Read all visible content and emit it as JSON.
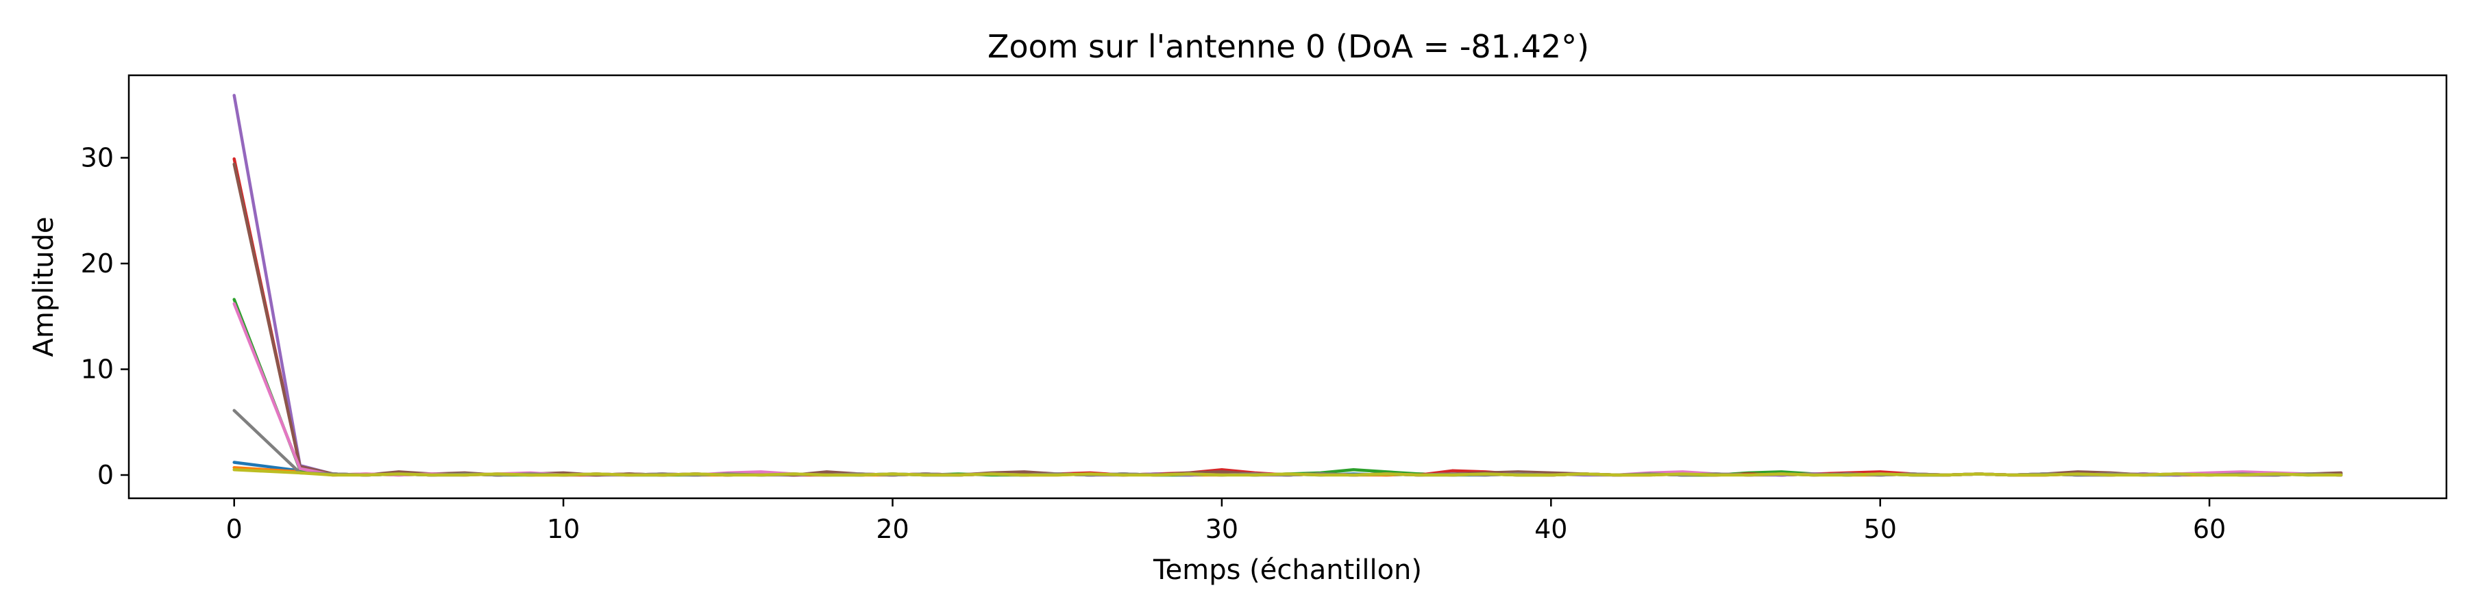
{
  "chart_data": {
    "type": "line",
    "title": "Zoom sur l'antenne 0 (DoA = -81.42°)",
    "xlabel": "Temps (échantillon)",
    "ylabel": "Amplitude",
    "xlim": [
      -3.2,
      67.2
    ],
    "ylim": [
      -2.2,
      37.8
    ],
    "xticks": [
      0,
      10,
      20,
      30,
      40,
      50,
      60
    ],
    "yticks": [
      0,
      10,
      20,
      30
    ],
    "grid": false,
    "legend": "none",
    "x": [
      0,
      2,
      3,
      4,
      5,
      6,
      7,
      8,
      9,
      10,
      11,
      12,
      13,
      14,
      15,
      16,
      17,
      18,
      19,
      20,
      21,
      22,
      23,
      24,
      25,
      26,
      27,
      28,
      29,
      30,
      31,
      32,
      33,
      34,
      35,
      36,
      37,
      38,
      39,
      40,
      41,
      42,
      43,
      44,
      45,
      46,
      47,
      48,
      49,
      50,
      51,
      52,
      53,
      54,
      55,
      56,
      57,
      58,
      59,
      60,
      61,
      62,
      63,
      64
    ],
    "series": [
      {
        "color": "#1f77b4",
        "values": [
          1.2,
          0.4,
          0.1,
          0.0,
          0.1,
          0.0,
          0.1,
          0.0,
          0.1,
          0.0,
          0.1,
          0.0,
          0.0,
          0.1,
          0.0,
          0.1,
          0.0,
          0.1,
          0.0,
          0.1,
          0.0,
          0.0,
          0.1,
          0.0,
          0.1,
          0.0,
          0.1,
          0.0,
          0.0,
          0.1,
          0.0,
          0.1,
          0.0,
          0.1,
          0.0,
          0.1,
          0.0,
          0.0,
          0.1,
          0.0,
          0.1,
          0.0,
          0.1,
          0.0,
          0.0,
          0.1,
          0.0,
          0.1,
          0.0,
          0.1,
          0.0,
          0.0,
          0.1,
          0.0,
          0.1,
          0.0,
          0.1,
          0.0,
          0.0,
          0.1,
          0.0,
          0.1,
          0.0,
          0.1
        ]
      },
      {
        "color": "#ff7f0e",
        "values": [
          0.7,
          0.3,
          0.0,
          0.1,
          0.0,
          0.1,
          0.0,
          0.1,
          0.0,
          0.0,
          0.1,
          0.0,
          0.1,
          0.0,
          0.0,
          0.1,
          0.0,
          0.1,
          0.0,
          0.0,
          0.1,
          0.0,
          0.1,
          0.0,
          0.0,
          0.1,
          0.0,
          0.1,
          0.0,
          0.0,
          0.1,
          0.0,
          0.1,
          0.0,
          0.0,
          0.1,
          0.0,
          0.1,
          0.0,
          0.0,
          0.1,
          0.0,
          0.1,
          0.0,
          0.0,
          0.1,
          0.0,
          0.1,
          0.0,
          0.0,
          0.1,
          0.0,
          0.1,
          0.0,
          0.0,
          0.1,
          0.0,
          0.1,
          0.0,
          0.0,
          0.1,
          0.0,
          0.1,
          0.0
        ]
      },
      {
        "color": "#2ca02c",
        "values": [
          16.6,
          0.5,
          0.1,
          0.0,
          0.1,
          0.0,
          0.1,
          0.0,
          0.0,
          0.1,
          0.0,
          0.1,
          0.0,
          0.0,
          0.1,
          0.0,
          0.1,
          0.0,
          0.0,
          0.1,
          0.0,
          0.1,
          0.0,
          0.0,
          0.1,
          0.0,
          0.1,
          0.0,
          0.0,
          0.1,
          0.0,
          0.1,
          0.2,
          0.5,
          0.3,
          0.1,
          0.0,
          0.1,
          0.0,
          0.0,
          0.1,
          0.0,
          0.1,
          0.0,
          0.0,
          0.2,
          0.3,
          0.1,
          0.0,
          0.1,
          0.0,
          0.0,
          0.1,
          0.0,
          0.1,
          0.0,
          0.0,
          0.1,
          0.0,
          0.1,
          0.0,
          0.0,
          0.1,
          0.0
        ]
      },
      {
        "color": "#d62728",
        "values": [
          29.9,
          0.8,
          0.1,
          0.0,
          0.1,
          0.0,
          0.1,
          0.0,
          0.1,
          0.0,
          0.0,
          0.1,
          0.0,
          0.1,
          0.0,
          0.1,
          0.0,
          0.0,
          0.1,
          0.0,
          0.1,
          0.0,
          0.1,
          0.0,
          0.1,
          0.2,
          0.0,
          0.1,
          0.2,
          0.5,
          0.2,
          0.0,
          0.1,
          0.0,
          0.1,
          0.0,
          0.4,
          0.3,
          0.1,
          0.0,
          0.1,
          0.0,
          0.0,
          0.1,
          0.0,
          0.1,
          0.0,
          0.1,
          0.2,
          0.3,
          0.1,
          0.0,
          0.1,
          0.0,
          0.0,
          0.1,
          0.0,
          0.1,
          0.0,
          0.1,
          0.0,
          0.0,
          0.1,
          0.0
        ]
      },
      {
        "color": "#9467bd",
        "values": [
          35.9,
          0.9,
          0.1,
          0.0,
          0.1,
          0.0,
          0.0,
          0.1,
          0.0,
          0.1,
          0.0,
          0.0,
          0.1,
          0.0,
          0.1,
          0.0,
          0.0,
          0.1,
          0.0,
          0.1,
          0.0,
          0.0,
          0.1,
          0.0,
          0.1,
          0.0,
          0.0,
          0.1,
          0.0,
          0.1,
          0.0,
          0.0,
          0.1,
          0.0,
          0.1,
          0.0,
          0.0,
          0.1,
          0.0,
          0.1,
          0.0,
          0.0,
          0.1,
          0.0,
          0.1,
          0.0,
          0.0,
          0.1,
          0.0,
          0.1,
          0.0,
          0.0,
          0.1,
          0.0,
          0.1,
          0.0,
          0.0,
          0.1,
          0.0,
          0.1,
          0.0,
          0.0,
          0.1,
          0.0
        ]
      },
      {
        "color": "#8c564b",
        "values": [
          29.4,
          0.8,
          0.1,
          0.0,
          0.3,
          0.1,
          0.2,
          0.0,
          0.1,
          0.2,
          0.0,
          0.1,
          0.0,
          0.1,
          0.0,
          0.1,
          0.0,
          0.3,
          0.1,
          0.0,
          0.1,
          0.0,
          0.2,
          0.3,
          0.1,
          0.0,
          0.1,
          0.0,
          0.2,
          0.3,
          0.1,
          0.0,
          0.1,
          0.0,
          0.1,
          0.0,
          0.1,
          0.2,
          0.3,
          0.2,
          0.1,
          0.0,
          0.1,
          0.0,
          0.1,
          0.0,
          0.1,
          0.0,
          0.1,
          0.0,
          0.1,
          0.0,
          0.1,
          0.0,
          0.1,
          0.3,
          0.2,
          0.0,
          0.1,
          0.0,
          0.1,
          0.0,
          0.1,
          0.2
        ]
      },
      {
        "color": "#e377c2",
        "values": [
          16.2,
          0.6,
          0.0,
          0.1,
          0.0,
          0.1,
          0.0,
          0.1,
          0.2,
          0.0,
          0.1,
          0.0,
          0.1,
          0.0,
          0.2,
          0.3,
          0.1,
          0.0,
          0.1,
          0.0,
          0.1,
          0.0,
          0.1,
          0.0,
          0.1,
          0.0,
          0.1,
          0.0,
          0.1,
          0.0,
          0.1,
          0.0,
          0.1,
          0.0,
          0.1,
          0.0,
          0.1,
          0.0,
          0.1,
          0.0,
          0.1,
          0.0,
          0.2,
          0.3,
          0.1,
          0.0,
          0.1,
          0.0,
          0.1,
          0.0,
          0.1,
          0.0,
          0.1,
          0.0,
          0.1,
          0.0,
          0.1,
          0.0,
          0.1,
          0.2,
          0.3,
          0.2,
          0.1,
          0.0
        ]
      },
      {
        "color": "#7f7f7f",
        "values": [
          6.1,
          0.2,
          0.1,
          0.0,
          0.1,
          0.0,
          0.1,
          0.0,
          0.1,
          0.0,
          0.1,
          0.0,
          0.1,
          0.0,
          0.1,
          0.0,
          0.1,
          0.0,
          0.1,
          0.0,
          0.1,
          0.0,
          0.1,
          0.0,
          0.1,
          0.0,
          0.1,
          0.0,
          0.1,
          0.0,
          0.1,
          0.0,
          0.1,
          0.0,
          0.1,
          0.0,
          0.1,
          0.0,
          0.1,
          0.0,
          0.1,
          0.0,
          0.1,
          0.0,
          0.1,
          0.0,
          0.1,
          0.0,
          0.1,
          0.0,
          0.1,
          0.0,
          0.1,
          0.0,
          0.1,
          0.0,
          0.1,
          0.0,
          0.1,
          0.0,
          0.1,
          0.0,
          0.1,
          0.0
        ]
      },
      {
        "color": "#bcbd22",
        "values": [
          0.5,
          0.2,
          0.0,
          0.0,
          0.1,
          0.0,
          0.0,
          0.1,
          0.0,
          0.0,
          0.1,
          0.0,
          0.0,
          0.1,
          0.0,
          0.0,
          0.1,
          0.0,
          0.0,
          0.1,
          0.0,
          0.0,
          0.1,
          0.0,
          0.0,
          0.1,
          0.0,
          0.0,
          0.1,
          0.0,
          0.0,
          0.1,
          0.0,
          0.0,
          0.1,
          0.0,
          0.0,
          0.1,
          0.0,
          0.0,
          0.1,
          0.0,
          0.0,
          0.1,
          0.0,
          0.0,
          0.1,
          0.0,
          0.0,
          0.1,
          0.0,
          0.0,
          0.1,
          0.0,
          0.0,
          0.1,
          0.0,
          0.0,
          0.1,
          0.0,
          0.0,
          0.1,
          0.0,
          0.0
        ]
      }
    ]
  }
}
